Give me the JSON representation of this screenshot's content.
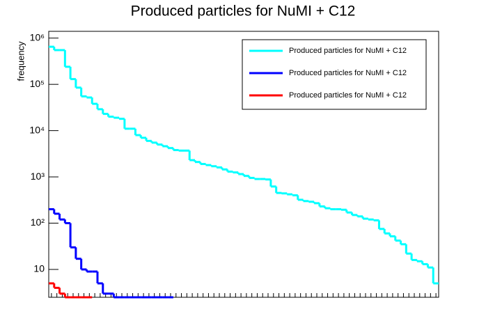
{
  "chart_data": {
    "type": "line",
    "title": "Produced particles for NuMI + C12",
    "y_label": "frequency",
    "log_y": true,
    "step": true,
    "legend": "top-right",
    "categories": [
      null,
      null,
      null,
      null,
      null,
      null,
      null,
      null,
      null,
      null,
      null,
      null,
      null,
      null,
      null,
      null,
      null,
      null,
      null,
      null,
      null,
      null,
      null,
      null,
      null,
      null,
      null,
      null,
      null,
      null,
      null,
      null,
      null,
      null,
      null,
      null,
      null,
      null,
      null,
      null,
      null,
      null,
      null,
      null,
      null,
      null,
      null,
      null,
      null,
      null,
      null,
      null,
      null,
      null,
      null,
      null,
      null,
      null,
      null,
      null,
      null,
      null,
      null,
      null,
      null,
      null,
      null,
      null,
      null,
      null,
      null,
      null
    ],
    "ylim": [
      2.5,
      1400000
    ],
    "yticks": [
      10,
      {
        "value": 100,
        "label": "10²"
      },
      {
        "value": 1000,
        "label": "10³"
      },
      {
        "value": 10000,
        "label": "10⁴"
      },
      {
        "value": 100000,
        "label": "10⁵"
      },
      {
        "value": 1000000,
        "label": "10⁶"
      }
    ],
    "series": [
      {
        "name": "Produced particles for NuMI + C12",
        "color": "#00ffff",
        "values": [
          650000,
          550000,
          550000,
          240000,
          130000,
          85000,
          55000,
          52000,
          38000,
          29000,
          23000,
          20000,
          19000,
          18000,
          11000,
          11000,
          8000,
          7000,
          6000,
          5500,
          5000,
          4600,
          4200,
          3800,
          3700,
          3700,
          2300,
          2100,
          1900,
          1800,
          1700,
          1600,
          1450,
          1300,
          1250,
          1150,
          1050,
          950,
          900,
          900,
          880,
          620,
          450,
          440,
          420,
          400,
          320,
          300,
          290,
          270,
          230,
          210,
          200,
          200,
          195,
          170,
          150,
          140,
          125,
          120,
          115,
          75,
          60,
          52,
          42,
          35,
          22,
          16,
          15,
          13,
          11,
          5
        ]
      },
      {
        "name": "Produced particles for NuMI + C12",
        "color": "#0000ff",
        "values": [
          200,
          160,
          120,
          100,
          30,
          17,
          10,
          9,
          9,
          5,
          3,
          3,
          2.5,
          2.5,
          2.5,
          2.5,
          2.5,
          2.5,
          2.5,
          2.5,
          2.5,
          2.5,
          2.5,
          null,
          null,
          null,
          null,
          null,
          null,
          null,
          null,
          null,
          null,
          null,
          null,
          null,
          null,
          null,
          null,
          null,
          null,
          null,
          null,
          null,
          null,
          null,
          null,
          null,
          null,
          null,
          null,
          null,
          null,
          null,
          null,
          null,
          null,
          null,
          null,
          null,
          null,
          null,
          null,
          null,
          null,
          null,
          null,
          null,
          null,
          null,
          null,
          null
        ]
      },
      {
        "name": "Produced particles for NuMI + C12",
        "color": "#ff0000",
        "values": [
          5,
          4,
          3,
          2.5,
          2.5,
          2.5,
          2.5,
          2.5,
          null,
          null,
          null,
          null,
          null,
          null,
          null,
          null,
          null,
          null,
          null,
          null,
          null,
          null,
          null,
          null,
          null,
          null,
          null,
          null,
          null,
          null,
          null,
          null,
          null,
          null,
          null,
          null,
          null,
          null,
          null,
          null,
          null,
          null,
          null,
          null,
          null,
          null,
          null,
          null,
          null,
          null,
          null,
          null,
          null,
          null,
          null,
          null,
          null,
          null,
          null,
          null,
          null,
          null,
          null,
          null,
          null,
          null,
          null,
          null,
          null,
          null,
          null,
          null
        ]
      }
    ]
  }
}
